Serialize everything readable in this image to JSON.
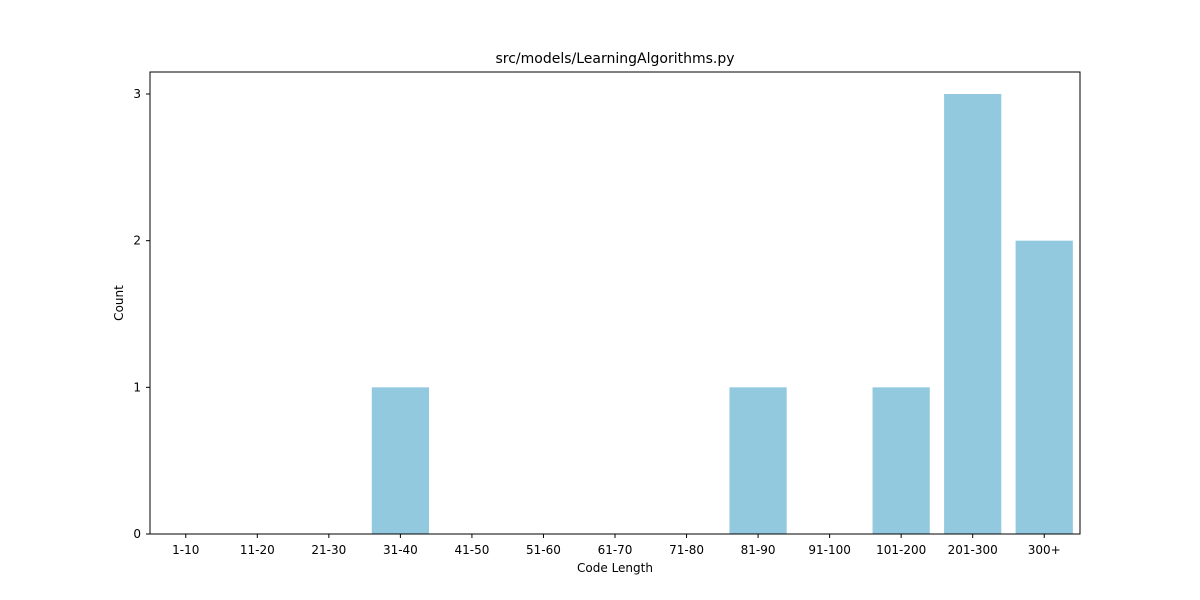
{
  "chart_data": {
    "type": "bar",
    "title": "src/models/LearningAlgorithms.py",
    "xlabel": "Code Length",
    "ylabel": "Count",
    "categories": [
      "1-10",
      "11-20",
      "21-30",
      "31-40",
      "41-50",
      "51-60",
      "61-70",
      "71-80",
      "81-90",
      "91-100",
      "101-200",
      "201-300",
      "300+"
    ],
    "values": [
      0,
      0,
      0,
      1,
      0,
      0,
      0,
      0,
      1,
      0,
      1,
      3,
      2
    ],
    "ylim": [
      0,
      3.15
    ],
    "yticks": [
      "0",
      "1",
      "2",
      "3"
    ],
    "grid": false,
    "bar_color": "#92c9df"
  }
}
